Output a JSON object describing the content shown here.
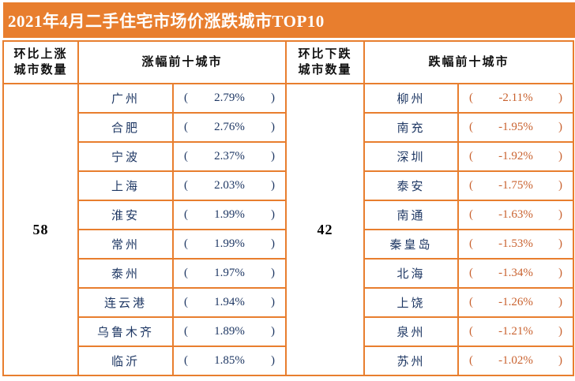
{
  "title": "2021年4月二手住宅市场价涨跌城市TOP10",
  "colors": {
    "accent": "#E87E2E",
    "navy": "#1F3864",
    "down": "#C9622F",
    "ink": "#111111"
  },
  "format": {
    "open_paren": "(",
    "close_paren": ")"
  },
  "header": {
    "up_count_line1": "环比上涨",
    "up_count_line2": "城市数量",
    "up_top10": "涨幅前十城市",
    "down_count_line1": "环比下跌",
    "down_count_line2": "城市数量",
    "down_top10": "跌幅前十城市"
  },
  "up_count": "58",
  "down_count": "42",
  "rows": [
    {
      "up_city": "广州",
      "up_pct": "2.79%",
      "down_city": "柳州",
      "down_pct": "-2.11%"
    },
    {
      "up_city": "合肥",
      "up_pct": "2.76%",
      "down_city": "南充",
      "down_pct": "-1.95%"
    },
    {
      "up_city": "宁波",
      "up_pct": "2.37%",
      "down_city": "深圳",
      "down_pct": "-1.92%"
    },
    {
      "up_city": "上海",
      "up_pct": "2.03%",
      "down_city": "泰安",
      "down_pct": "-1.75%"
    },
    {
      "up_city": "淮安",
      "up_pct": "1.99%",
      "down_city": "南通",
      "down_pct": "-1.63%"
    },
    {
      "up_city": "常州",
      "up_pct": "1.99%",
      "down_city": "秦皇岛",
      "down_pct": "-1.53%"
    },
    {
      "up_city": "泰州",
      "up_pct": "1.97%",
      "down_city": "北海",
      "down_pct": "-1.34%"
    },
    {
      "up_city": "连云港",
      "up_pct": "1.94%",
      "down_city": "上饶",
      "down_pct": "-1.26%"
    },
    {
      "up_city": "乌鲁木齐",
      "up_pct": "1.89%",
      "down_city": "泉州",
      "down_pct": "-1.21%"
    },
    {
      "up_city": "临沂",
      "up_pct": "1.85%",
      "down_city": "苏州",
      "down_pct": "-1.02%"
    }
  ],
  "chart_data": {
    "type": "table",
    "title": "2021年4月二手住宅市场价涨跌城市TOP10",
    "columns": [
      "环比上涨城市数量",
      "涨幅前十城市",
      "环比下跌城市数量",
      "跌幅前十城市"
    ],
    "up_cities_count": 58,
    "down_cities_count": 42,
    "top10_up": [
      {
        "city": "广州",
        "mom_pct": 2.79
      },
      {
        "city": "合肥",
        "mom_pct": 2.76
      },
      {
        "city": "宁波",
        "mom_pct": 2.37
      },
      {
        "city": "上海",
        "mom_pct": 2.03
      },
      {
        "city": "淮安",
        "mom_pct": 1.99
      },
      {
        "city": "常州",
        "mom_pct": 1.99
      },
      {
        "city": "泰州",
        "mom_pct": 1.97
      },
      {
        "city": "连云港",
        "mom_pct": 1.94
      },
      {
        "city": "乌鲁木齐",
        "mom_pct": 1.89
      },
      {
        "city": "临沂",
        "mom_pct": 1.85
      }
    ],
    "top10_down": [
      {
        "city": "柳州",
        "mom_pct": -2.11
      },
      {
        "city": "南充",
        "mom_pct": -1.95
      },
      {
        "city": "深圳",
        "mom_pct": -1.92
      },
      {
        "city": "泰安",
        "mom_pct": -1.75
      },
      {
        "city": "南通",
        "mom_pct": -1.63
      },
      {
        "city": "秦皇岛",
        "mom_pct": -1.53
      },
      {
        "city": "北海",
        "mom_pct": -1.34
      },
      {
        "city": "上饶",
        "mom_pct": -1.26
      },
      {
        "city": "泉州",
        "mom_pct": -1.21
      },
      {
        "city": "苏州",
        "mom_pct": -1.02
      }
    ]
  }
}
